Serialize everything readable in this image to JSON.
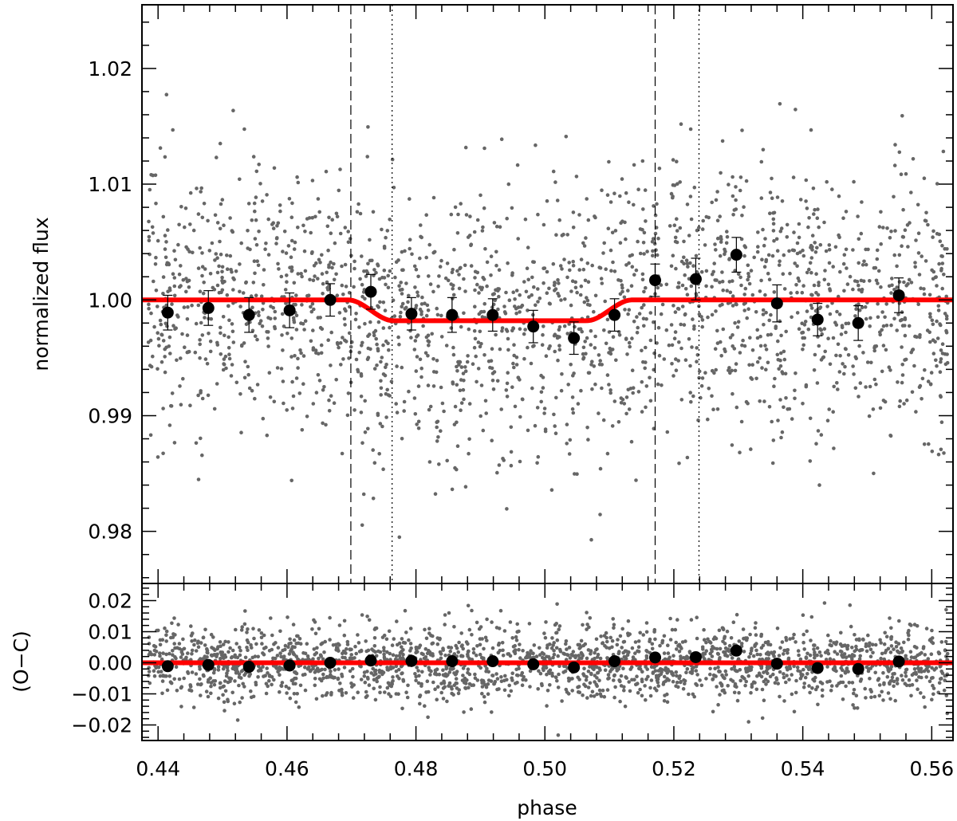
{
  "chart_data": [
    {
      "type": "scatter",
      "panel": "light-curve",
      "xlabel": "",
      "ylabel": "normalized flux",
      "xlim": [
        0.4375,
        0.5633
      ],
      "ylim": [
        0.9755,
        1.0255
      ],
      "y_ticks": [
        0.98,
        0.99,
        1.0,
        1.01,
        1.02
      ],
      "y_tick_labels": [
        "0.98",
        "0.99",
        "1.00",
        "1.01",
        "1.02"
      ],
      "x_ticks": [
        0.44,
        0.46,
        0.48,
        0.5,
        0.52,
        0.54,
        0.56
      ],
      "x_tick_labels": [
        "0.44",
        "0.46",
        "0.48",
        "0.50",
        "0.52",
        "0.54",
        "0.56"
      ],
      "binned_points": {
        "x": [
          0.4415,
          0.4478,
          0.4541,
          0.4604,
          0.4667,
          0.473,
          0.4793,
          0.4856,
          0.4919,
          0.4982,
          0.5045,
          0.5108,
          0.5171,
          0.5234,
          0.5297,
          0.536,
          0.5423,
          0.5486,
          0.5549
        ],
        "y": [
          0.9989,
          0.9993,
          0.9987,
          0.9991,
          1.0,
          1.0007,
          0.9988,
          0.9987,
          0.9987,
          0.9977,
          0.9967,
          0.9987,
          1.0017,
          1.0018,
          1.0039,
          0.9997,
          0.9983,
          0.998,
          1.0004
        ],
        "yerr": [
          0.0015,
          0.0015,
          0.0015,
          0.0015,
          0.0014,
          0.0015,
          0.0014,
          0.0015,
          0.0014,
          0.0014,
          0.0014,
          0.0014,
          0.0014,
          0.0018,
          0.0015,
          0.0016,
          0.0014,
          0.0015,
          0.0015
        ]
      },
      "model": {
        "color": "#ff0000",
        "x": [
          0.4375,
          0.4695,
          0.4765,
          0.5065,
          0.5135,
          0.5633
        ],
        "y": [
          1.0,
          1.0,
          0.9982,
          0.9982,
          1.0,
          1.0
        ]
      },
      "vlines_dashed": [
        0.4699,
        0.5171
      ],
      "vlines_dotted": [
        0.4763,
        0.5239
      ],
      "raw_points": {
        "color": "#666666",
        "count": 2200,
        "scatter_sigma": 0.0058,
        "approx_range_y": [
          0.977,
          1.023
        ]
      }
    },
    {
      "type": "scatter",
      "panel": "residuals",
      "xlabel": "phase",
      "ylabel": "(O−C)",
      "xlim": [
        0.4375,
        0.5633
      ],
      "ylim": [
        -0.025,
        0.0255
      ],
      "y_ticks": [
        -0.02,
        -0.01,
        0.0,
        0.01,
        0.02
      ],
      "y_tick_labels": [
        "−0.02",
        "−0.01",
        "0.00",
        "0.01",
        "0.02"
      ],
      "x_ticks": [
        0.44,
        0.46,
        0.48,
        0.5,
        0.52,
        0.54,
        0.56
      ],
      "x_tick_labels": [
        "0.44",
        "0.46",
        "0.48",
        "0.50",
        "0.52",
        "0.54",
        "0.56"
      ],
      "binned_points": {
        "x": [
          0.4415,
          0.4478,
          0.4541,
          0.4604,
          0.4667,
          0.473,
          0.4793,
          0.4856,
          0.4919,
          0.4982,
          0.5045,
          0.5108,
          0.5171,
          0.5234,
          0.5297,
          0.536,
          0.5423,
          0.5486,
          0.5549
        ],
        "y": [
          -0.0011,
          -0.0007,
          -0.0013,
          -0.0009,
          0.0,
          0.0007,
          0.0006,
          0.0005,
          0.0005,
          -0.0005,
          -0.0015,
          0.0005,
          0.0017,
          0.0018,
          0.0039,
          -0.0003,
          -0.0017,
          -0.002,
          0.0004
        ]
      },
      "model": {
        "color": "#ff0000",
        "x": [
          0.4375,
          0.5633
        ],
        "y": [
          0.0,
          0.0
        ]
      },
      "raw_points": {
        "color": "#666666",
        "count": 2200,
        "scatter_sigma": 0.0058,
        "approx_range_y": [
          -0.024,
          0.024
        ]
      }
    }
  ]
}
